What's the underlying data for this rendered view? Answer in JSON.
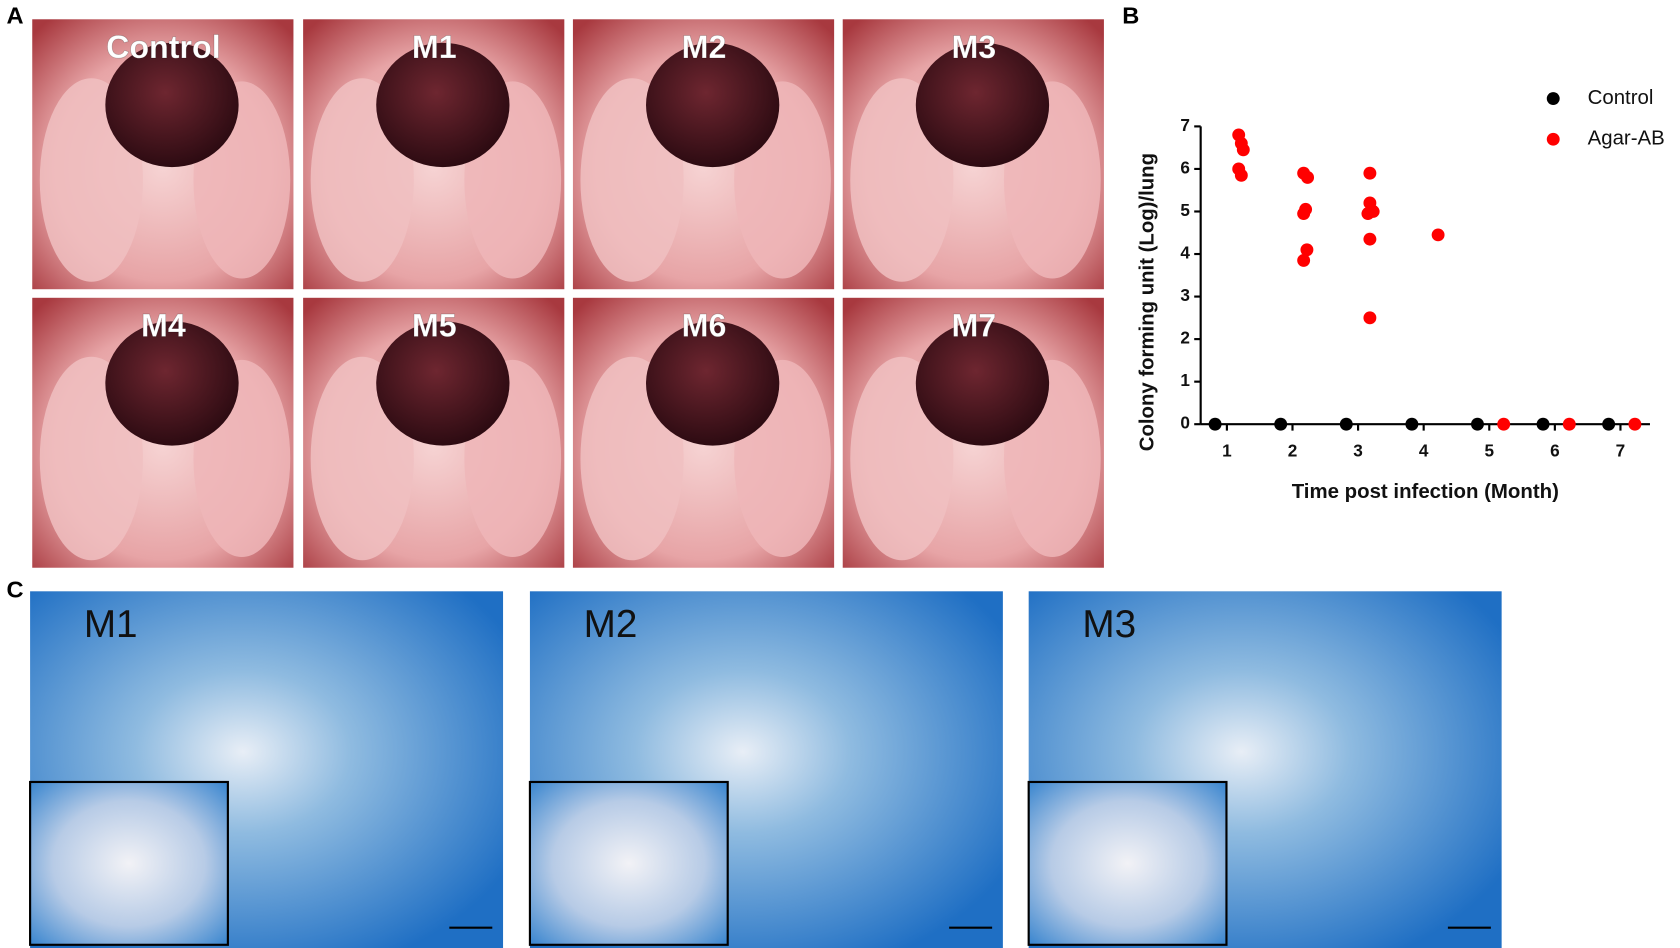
{
  "figure": {
    "panel_labels": [
      "A",
      "B",
      "C"
    ],
    "photo_labels": [
      "Control",
      "M1",
      "M2",
      "M3",
      "M4",
      "M5",
      "M6",
      "M7"
    ],
    "histology_labels": [
      "M1",
      "M2",
      "M3"
    ]
  },
  "chart_data": {
    "type": "scatter",
    "x_label": "Time post infection (Month)",
    "y_label": "Colony forming unit (Log)/lung",
    "series": [
      {
        "name": "Control",
        "color": "#000000",
        "x": [
          0.82,
          1.82,
          2.82,
          3.82,
          4.82,
          5.82,
          6.82
        ],
        "values": [
          0,
          0,
          0,
          0,
          0,
          0,
          0
        ]
      },
      {
        "name": "Agar-AB",
        "color": "#ff0000",
        "x": [
          1.18,
          1.22,
          1.25,
          1.18,
          1.22,
          2.17,
          2.23,
          2.2,
          2.17,
          2.22,
          2.17,
          3.18,
          3.18,
          3.23,
          3.15,
          3.18,
          3.18,
          4.22,
          5.22,
          6.22,
          7.22
        ],
        "values": [
          6.8,
          6.6,
          6.45,
          6.0,
          5.85,
          5.9,
          5.8,
          5.05,
          4.95,
          4.1,
          3.85,
          5.9,
          5.2,
          5.0,
          4.95,
          4.35,
          2.5,
          4.45,
          0,
          0,
          0
        ]
      }
    ],
    "xlim": [
      0.6,
      7.45
    ],
    "ylim": [
      0,
      7
    ],
    "xticks": [
      1,
      2,
      3,
      4,
      5,
      6,
      7
    ],
    "yticks": [
      0,
      1,
      2,
      3,
      4,
      5,
      6,
      7
    ],
    "legend": "upper right"
  }
}
